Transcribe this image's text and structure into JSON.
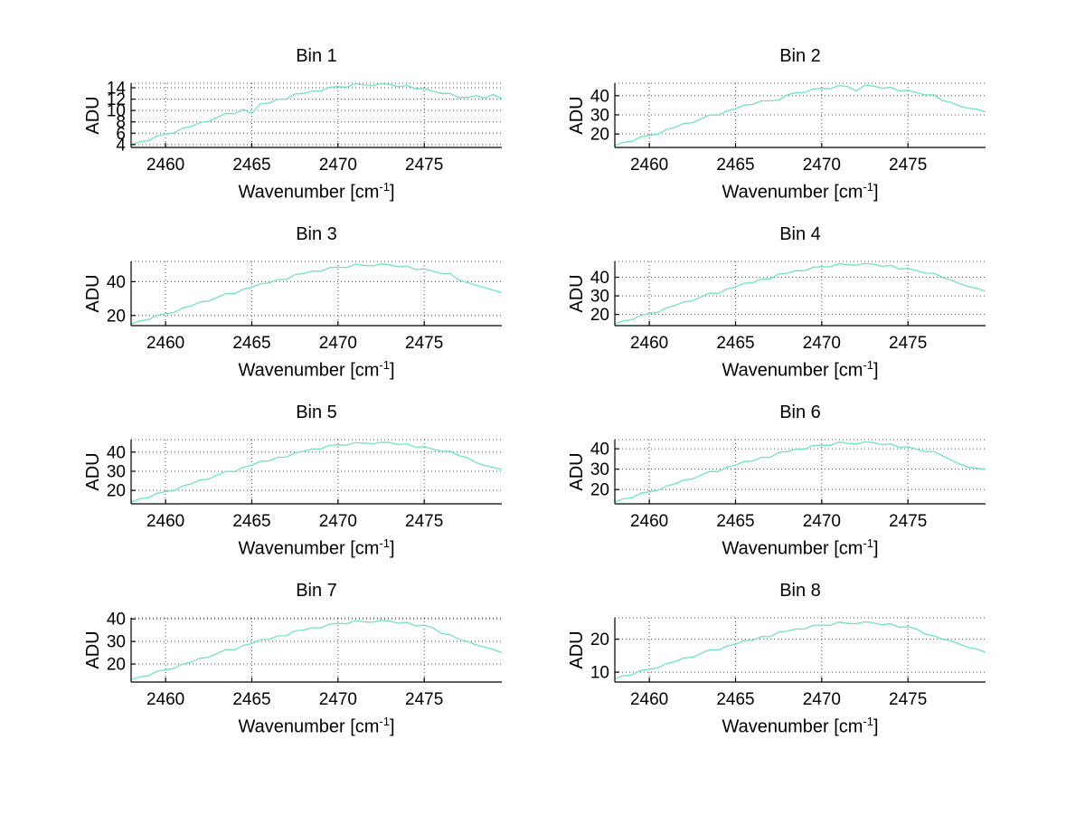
{
  "figure": {
    "background": "#ffffff"
  },
  "style": {
    "line_color": "#6ee3c3",
    "axis_color": "#000000",
    "grid_color": "#333333",
    "text_color": "#000000"
  },
  "labels": {
    "ylabel": "ADU",
    "xlabel_prefix": "Wavenumber [cm",
    "xlabel_sup": "-1",
    "xlabel_suffix": "]"
  },
  "chart_data": {
    "type": "line",
    "layout": "4x2-grid",
    "grid": "dotted",
    "legend": "none",
    "xlabel": "Wavenumber [cm^-1]",
    "ylabel": "ADU",
    "xlim": [
      2458,
      2479.5
    ],
    "xticks": [
      2460,
      2465,
      2470,
      2475
    ],
    "x": [
      2458,
      2458.5,
      2459,
      2459.5,
      2460,
      2460.5,
      2461,
      2461.5,
      2462,
      2462.5,
      2463,
      2463.5,
      2464,
      2464.5,
      2465,
      2465.5,
      2466,
      2466.5,
      2467,
      2467.5,
      2468,
      2468.5,
      2469,
      2469.5,
      2470,
      2470.5,
      2471,
      2471.5,
      2472,
      2472.5,
      2473,
      2473.5,
      2474,
      2474.5,
      2475,
      2475.5,
      2476,
      2476.5,
      2477,
      2477.5,
      2478,
      2478.5,
      2479,
      2479.5
    ],
    "charts": [
      {
        "title": "Bin 1",
        "ylim": [
          3.5,
          14.8
        ],
        "yticks": [
          4,
          6,
          8,
          10,
          12,
          14
        ],
        "values": [
          4.0,
          4.5,
          4.7,
          5.5,
          5.8,
          6.1,
          6.9,
          7.2,
          7.9,
          8.1,
          8.8,
          9.5,
          9.4,
          10.2,
          9.5,
          11.2,
          11.3,
          12.0,
          12.0,
          12.9,
          13.0,
          13.4,
          13.4,
          14.1,
          14.2,
          14.1,
          14.7,
          14.5,
          14.4,
          14.7,
          14.6,
          14.2,
          14.4,
          13.8,
          13.9,
          13.4,
          13.0,
          13.0,
          12.3,
          12.3,
          12.6,
          12.2,
          12.8,
          12.1
        ]
      },
      {
        "title": "Bin 2",
        "ylim": [
          13,
          46.5
        ],
        "yticks": [
          20,
          30,
          40
        ],
        "values": [
          14.0,
          15.6,
          16.2,
          18.5,
          19.3,
          20.0,
          22.4,
          23.5,
          25.5,
          25.9,
          28.0,
          30.0,
          29.8,
          32.1,
          33.2,
          35.1,
          35.4,
          37.3,
          37.3,
          37.7,
          40.4,
          41.6,
          41.6,
          43.5,
          43.8,
          43.6,
          45.3,
          44.7,
          42.5,
          45.5,
          45.0,
          43.9,
          44.4,
          42.5,
          42.8,
          41.6,
          40.4,
          40.4,
          37.5,
          36.5,
          34.5,
          33.5,
          33.0,
          31.5
        ]
      },
      {
        "title": "Bin 3",
        "ylim": [
          14,
          52
        ],
        "yticks": [
          20,
          40
        ],
        "values": [
          15.0,
          16.8,
          17.5,
          20.1,
          21.0,
          21.8,
          24.5,
          25.7,
          28.0,
          28.5,
          30.8,
          33.0,
          32.9,
          35.5,
          36.7,
          38.8,
          39.2,
          41.3,
          41.3,
          44.2,
          44.8,
          46.2,
          46.2,
          48.3,
          48.6,
          48.4,
          50.4,
          49.7,
          49.3,
          50.5,
          50.0,
          48.8,
          49.3,
          47.2,
          47.6,
          46.2,
          44.8,
          44.8,
          41.0,
          39.5,
          38.0,
          36.5,
          35.0,
          33.5
        ]
      },
      {
        "title": "Bin 4",
        "ylim": [
          14,
          48.5
        ],
        "yticks": [
          20,
          30,
          40
        ],
        "values": [
          15.0,
          16.6,
          17.2,
          19.6,
          20.4,
          21.2,
          23.6,
          24.8,
          26.8,
          27.3,
          29.4,
          31.5,
          31.3,
          33.7,
          34.8,
          36.8,
          37.1,
          39.0,
          39.0,
          41.7,
          42.2,
          43.5,
          43.5,
          45.4,
          45.7,
          45.6,
          47.3,
          46.7,
          46.4,
          47.5,
          47.0,
          45.9,
          46.4,
          44.4,
          44.8,
          43.5,
          42.2,
          42.2,
          40.0,
          38.5,
          36.5,
          35.0,
          34.0,
          32.5
        ]
      },
      {
        "title": "Bin 5",
        "ylim": [
          13,
          46.5
        ],
        "yticks": [
          20,
          30,
          40
        ],
        "values": [
          14.0,
          15.6,
          16.2,
          18.5,
          19.3,
          20.0,
          22.4,
          23.5,
          25.5,
          25.9,
          28.0,
          30.0,
          29.8,
          32.1,
          33.2,
          35.1,
          35.4,
          37.3,
          37.3,
          39.5,
          40.4,
          41.6,
          41.6,
          43.5,
          43.8,
          43.6,
          44.9,
          44.7,
          44.4,
          45.1,
          45.0,
          43.9,
          44.4,
          42.5,
          42.8,
          41.6,
          40.4,
          40.4,
          38.2,
          37.0,
          34.5,
          33.0,
          32.0,
          31.0
        ]
      },
      {
        "title": "Bin 6",
        "ylim": [
          13,
          44.5
        ],
        "yticks": [
          20,
          30,
          40
        ],
        "values": [
          14.0,
          15.5,
          16.0,
          18.2,
          18.9,
          19.7,
          21.8,
          22.8,
          24.7,
          25.2,
          27.1,
          28.9,
          28.8,
          31.0,
          32.0,
          33.7,
          34.0,
          35.8,
          35.8,
          38.2,
          38.7,
          39.8,
          39.8,
          41.6,
          41.8,
          41.7,
          43.3,
          42.7,
          42.4,
          43.4,
          43.0,
          42.0,
          42.4,
          40.7,
          41.0,
          39.8,
          38.7,
          38.7,
          36.6,
          34.5,
          32.5,
          31.0,
          30.5,
          30.0
        ]
      },
      {
        "title": "Bin 7",
        "ylim": [
          12,
          40.5
        ],
        "yticks": [
          20,
          30,
          40
        ],
        "values": [
          13.0,
          14.3,
          14.8,
          16.8,
          17.4,
          18.1,
          20.0,
          20.9,
          22.6,
          23.0,
          24.7,
          26.4,
          26.3,
          28.2,
          29.1,
          30.7,
          30.9,
          32.5,
          32.5,
          34.7,
          35.1,
          36.1,
          36.1,
          37.7,
          38.0,
          37.8,
          39.3,
          38.7,
          38.5,
          39.4,
          39.0,
          38.1,
          38.5,
          36.9,
          37.2,
          36.1,
          33.5,
          33.0,
          31.0,
          30.0,
          28.5,
          27.5,
          26.5,
          25.0
        ]
      },
      {
        "title": "Bin 8",
        "ylim": [
          7,
          26.5
        ],
        "yticks": [
          10,
          20
        ],
        "values": [
          8.0,
          8.9,
          9.2,
          10.5,
          10.9,
          11.3,
          12.6,
          13.2,
          14.3,
          14.5,
          15.7,
          16.8,
          16.7,
          17.9,
          18.5,
          19.6,
          19.7,
          20.8,
          20.8,
          22.2,
          22.5,
          23.1,
          23.1,
          24.2,
          24.3,
          24.2,
          25.2,
          24.8,
          24.7,
          25.3,
          25.0,
          24.4,
          24.7,
          23.6,
          23.8,
          23.1,
          21.5,
          21.0,
          20.0,
          19.5,
          18.5,
          17.5,
          17.0,
          16.0
        ]
      }
    ]
  }
}
